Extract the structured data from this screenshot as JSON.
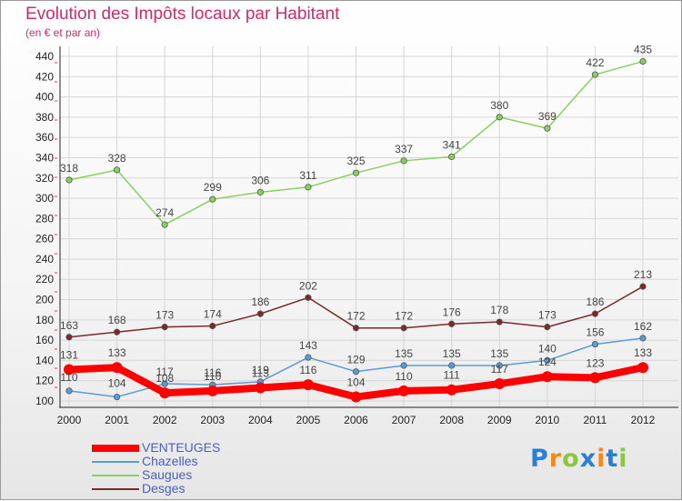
{
  "title": "Evolution des Impôts locaux par Habitant",
  "subtitle": "(en € et par an)",
  "logo": {
    "letters": [
      "P",
      "r",
      "o",
      "x",
      "i",
      "t",
      "i"
    ],
    "colors": [
      "#2a7fd4",
      "#f08a1c",
      "#8cc63f",
      "#2a7fd4",
      "#f08a1c",
      "#2a7fd4",
      "#8cc63f"
    ]
  },
  "chart_data": {
    "type": "line",
    "x": [
      "2000",
      "2001",
      "2002",
      "2003",
      "2004",
      "2005",
      "2006",
      "2007",
      "2008",
      "2009",
      "2010",
      "2011",
      "2012"
    ],
    "ylim": [
      100,
      440
    ],
    "yticks": [
      100,
      120,
      140,
      160,
      180,
      200,
      220,
      240,
      260,
      280,
      300,
      320,
      340,
      360,
      380,
      400,
      420,
      440
    ],
    "grid": true,
    "legend_position": "bottom-left",
    "series": [
      {
        "name": "Saugues",
        "color": "#88d060",
        "values": [
          318,
          328,
          274,
          299,
          306,
          311,
          325,
          337,
          341,
          380,
          369,
          422,
          435
        ]
      },
      {
        "name": "Desges",
        "color": "#7a2a2a",
        "values": [
          163,
          168,
          173,
          174,
          186,
          202,
          172,
          172,
          176,
          178,
          173,
          186,
          213
        ]
      },
      {
        "name": "Chazelles",
        "color": "#5b9bd5",
        "values": [
          110,
          104,
          117,
          116,
          119,
          143,
          129,
          135,
          135,
          135,
          140,
          156,
          162
        ]
      },
      {
        "name": "VENTEUGES",
        "color": "#ff0000",
        "values": [
          131,
          133,
          108,
          110,
          113,
          116,
          104,
          110,
          111,
          117,
          124,
          123,
          133
        ]
      }
    ],
    "legend_order": [
      "VENTEUGES",
      "Chazelles",
      "Saugues",
      "Desges"
    ]
  }
}
